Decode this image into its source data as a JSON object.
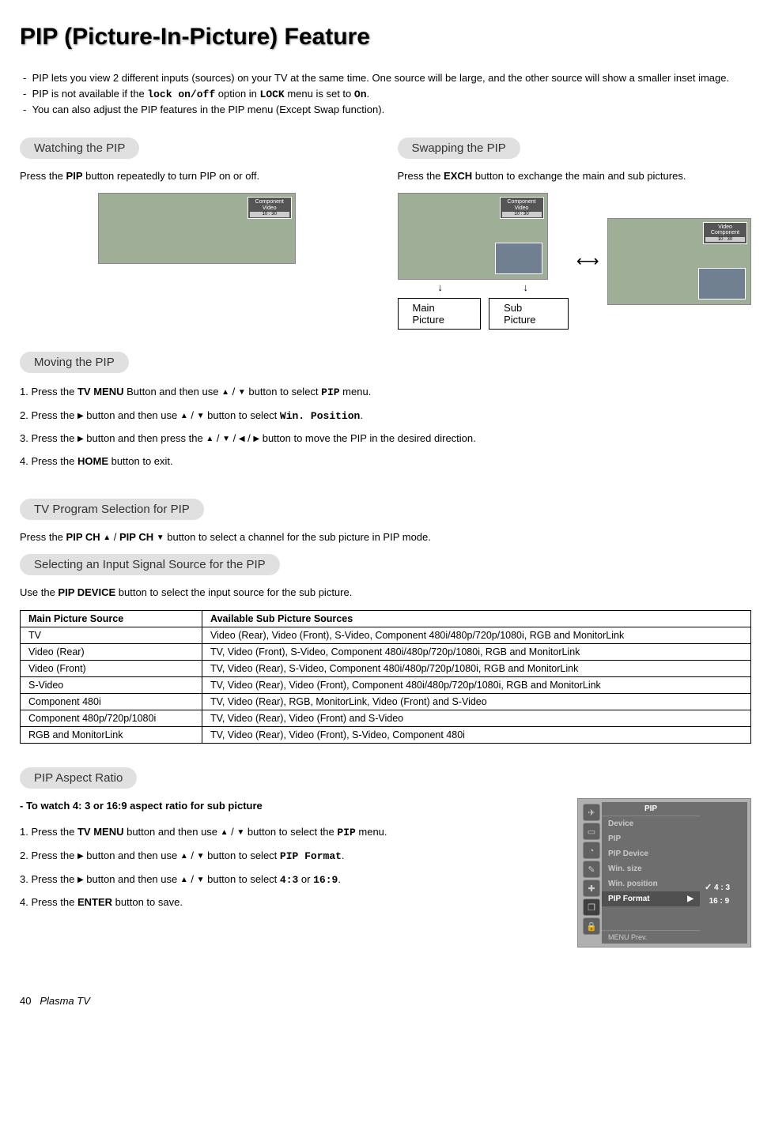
{
  "page": {
    "title": "PIP (Picture-In-Picture) Feature",
    "footer_page": "40",
    "footer_label": "Plasma TV"
  },
  "intro": {
    "items": [
      "PIP lets you view 2 different inputs (sources) on your TV at the same time. One source will be large, and the other source will show a smaller inset image.",
      "PIP is not available if the <span class='mono'>lock on/off</span> option in <span class='mono'>LOCK</span> menu is set to <span class='mono'>On</span>.",
      "You can also adjust the PIP features in the PIP menu (Except Swap function)."
    ]
  },
  "sections": {
    "watching": {
      "header": "Watching the PIP",
      "text": "Press the <b>PIP</b> button repeatedly to turn PIP on or off.",
      "badge_l1": "Component",
      "badge_l2": "Video",
      "badge_time": "10 : 30"
    },
    "swapping": {
      "header": "Swapping the PIP",
      "text": "Press the <b>EXCH</b> button to exchange the main and sub pictures.",
      "badge1_l1": "Component",
      "badge1_l2": "Video",
      "badge2_l1": "Video",
      "badge2_l2": "Component",
      "label_main": "Main Picture",
      "label_sub": "Sub Picture"
    },
    "moving": {
      "header": "Moving the PIP",
      "steps": [
        "1. Press the <b>TV MENU</b> Button and then use <span class='tri'>▲</span> / <span class='tri'>▼</span> button to select <span class='mono'>PIP</span> menu.",
        "2. Press the <span class='tri'>▶</span> button and then use <span class='tri'>▲</span> / <span class='tri'>▼</span> button to select <span class='mono'>Win. Position</span>.",
        "3. Press the <span class='tri'>▶</span> button and then press the <span class='tri'>▲</span> / <span class='tri'>▼</span> / <span class='tri'>◀</span> / <span class='tri'>▶</span>  button to move the PIP in the desired direction.",
        "4. Press the <b>HOME</b> button to exit."
      ]
    },
    "tvprog": {
      "header": "TV Program Selection for PIP",
      "text": "Press the <b>PIP CH <span class='tri'>▲</span></b> / <b>PIP CH <span class='tri'>▼</span></b> button to select a channel for the sub picture in PIP mode."
    },
    "selecting": {
      "header": "Selecting an Input Signal Source for the PIP",
      "text": "Use the <b>PIP DEVICE</b> button to select the input source for the sub picture.",
      "table": {
        "col1": "Main Picture Source",
        "col2": "Available Sub Picture Sources",
        "rows": [
          [
            "TV",
            "Video (Rear), Video (Front), S-Video, Component 480i/480p/720p/1080i, RGB and MonitorLink"
          ],
          [
            "Video (Rear)",
            "TV, Video (Front), S-Video, Component 480i/480p/720p/1080i, RGB and MonitorLink"
          ],
          [
            "Video (Front)",
            "TV, Video (Rear), S-Video, Component 480i/480p/720p/1080i, RGB and MonitorLink"
          ],
          [
            "S-Video",
            "TV, Video (Rear), Video (Front), Component 480i/480p/720p/1080i, RGB and MonitorLink"
          ],
          [
            "Component 480i",
            "TV, Video (Rear), RGB, MonitorLink, Video (Front) and S-Video"
          ],
          [
            "Component 480p/720p/1080i",
            "TV, Video (Rear), Video (Front) and S-Video"
          ],
          [
            "RGB and MonitorLink",
            "TV, Video (Rear), Video (Front), S-Video, Component 480i"
          ]
        ]
      }
    },
    "aspect": {
      "header": "PIP Aspect Ratio",
      "subhead": "-  To watch 4: 3 or 16:9 aspect ratio for sub picture",
      "steps": [
        "1. Press the <b>TV MENU</b> button and then use <span class='tri'>▲</span> / <span class='tri'>▼</span>  button to select the <span class='mono'>PIP</span> menu.",
        "2. Press the <span class='tri'>▶</span> button and then use <span class='tri'>▲</span> / <span class='tri'>▼</span>  button to select <span class='mono'>PIP Format</span>.",
        "3. Press the <span class='tri'>▶</span> button and then use <span class='tri'>▲</span> / <span class='tri'>▼</span> button to select <span class='mono'>4:3</span> or <span class='mono'>16:9</span>.",
        "4. Press the <b>ENTER</b> button to save."
      ]
    }
  },
  "osd": {
    "title": "PIP",
    "items": [
      "Device",
      "PIP",
      "PIP Device",
      "Win. size",
      "Win. position"
    ],
    "selected": "PIP Format",
    "options": [
      "4 : 3",
      "16 : 9"
    ],
    "footer": "MENU   Prev."
  }
}
